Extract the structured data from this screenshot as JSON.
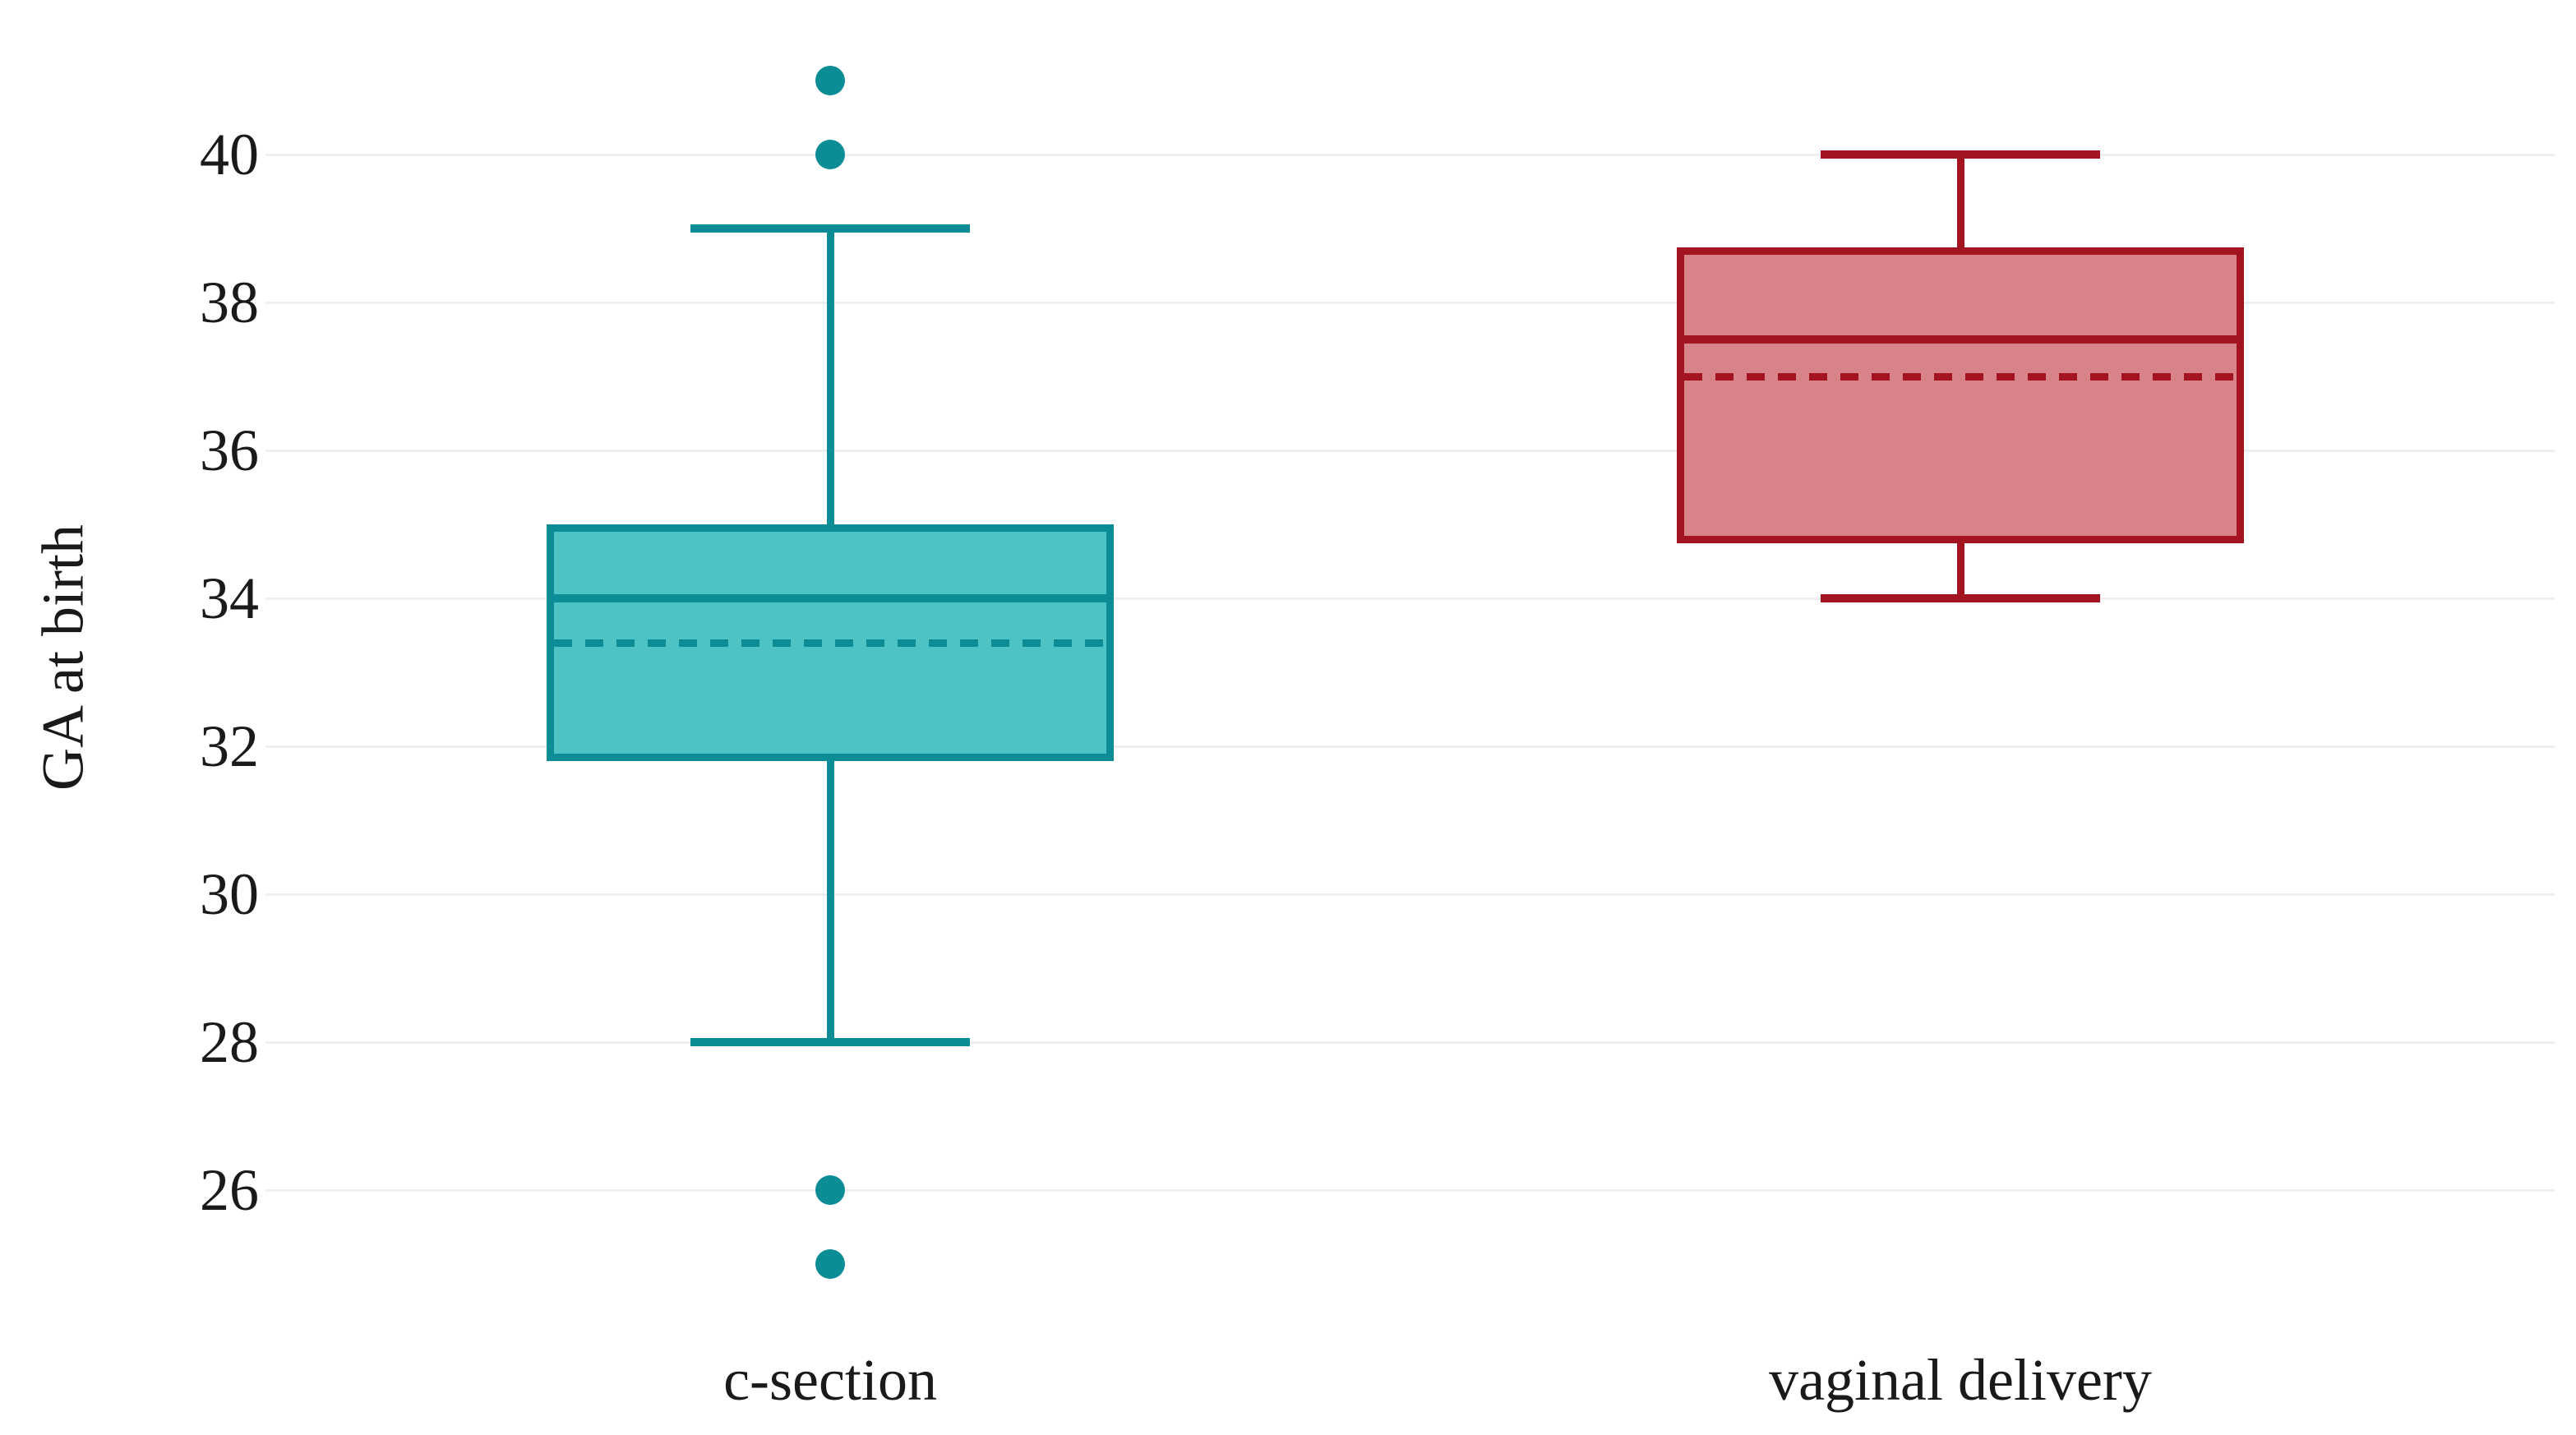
{
  "chart_data": {
    "type": "boxplot",
    "title": "",
    "ylabel": "GA at birth",
    "xlabel": "",
    "ylim": [
      24.5,
      41.5
    ],
    "yticks": [
      40,
      38,
      36,
      34,
      32,
      30,
      28,
      26
    ],
    "grid": true,
    "legend": "none",
    "categories": [
      "c-section",
      "vaginal delivery"
    ],
    "series": [
      {
        "name": "c-section",
        "whisker_min": 28,
        "q1": 31.8,
        "median": 34,
        "mean": 33.4,
        "q3": 35,
        "whisker_max": 39,
        "outliers": [
          41,
          40,
          26,
          25
        ],
        "line_color": "#0C8C95",
        "fill_color": "#4EC3C5"
      },
      {
        "name": "vaginal delivery",
        "whisker_min": 34,
        "q1": 34.75,
        "median": 37.5,
        "mean": 37,
        "q3": 38.75,
        "whisker_max": 40,
        "outliers": [],
        "line_color": "#A31420",
        "fill_color": "#D8838A"
      }
    ],
    "mean_line_style": "dashed",
    "median_line_style": "solid",
    "colors": {
      "background": "#FFFFFF",
      "gridline": "#EFEFEF",
      "text": "#1A1A1A"
    }
  }
}
